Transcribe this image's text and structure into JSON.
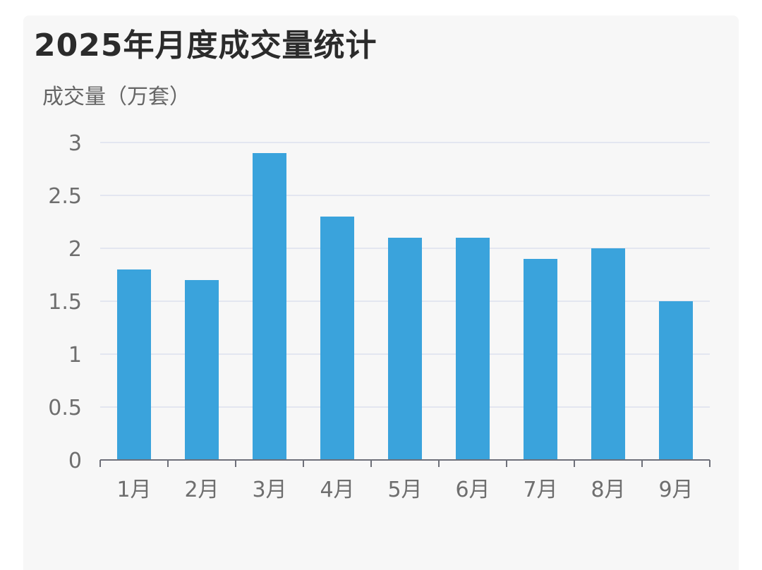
{
  "chart_data": {
    "type": "bar",
    "title": "2025年月度成交量统计",
    "ylabel": "成交量（万套）",
    "xlabel": "",
    "categories": [
      "1月",
      "2月",
      "3月",
      "4月",
      "5月",
      "6月",
      "7月",
      "8月",
      "9月"
    ],
    "values": [
      1.8,
      1.7,
      2.9,
      2.3,
      2.1,
      2.1,
      1.9,
      2.0,
      1.5
    ],
    "ylim": [
      0,
      3
    ],
    "yticks": [
      "0",
      "0.5",
      "1",
      "1.5",
      "2",
      "2.5",
      "3"
    ],
    "grid": true,
    "colors": {
      "bar": "#3aa3dc",
      "grid": "#e3e6f0",
      "axis": "#6e7079",
      "text": "#6e6e6e",
      "background": "#f7f7f7"
    }
  }
}
